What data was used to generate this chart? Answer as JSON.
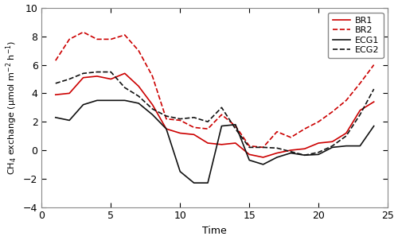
{
  "x": [
    1,
    2,
    3,
    4,
    5,
    6,
    7,
    8,
    9,
    10,
    11,
    12,
    13,
    14,
    15,
    16,
    17,
    18,
    19,
    20,
    21,
    22,
    23,
    24
  ],
  "BR1": [
    3.9,
    4.0,
    5.1,
    5.2,
    5.0,
    5.4,
    4.5,
    3.2,
    1.5,
    1.2,
    1.1,
    0.5,
    0.4,
    0.5,
    -0.3,
    -0.5,
    -0.2,
    0.0,
    0.1,
    0.5,
    0.6,
    1.2,
    2.8,
    3.4
  ],
  "BR2": [
    6.3,
    7.8,
    8.3,
    7.8,
    7.8,
    8.1,
    7.0,
    5.2,
    2.2,
    2.1,
    1.6,
    1.5,
    2.5,
    1.7,
    0.3,
    0.2,
    1.3,
    0.9,
    1.5,
    2.0,
    2.7,
    3.5,
    4.7,
    6.0
  ],
  "ECG1": [
    2.3,
    2.1,
    3.2,
    3.5,
    3.5,
    3.5,
    3.3,
    2.5,
    1.5,
    -1.5,
    -2.3,
    -2.3,
    1.7,
    1.8,
    -0.7,
    -1.0,
    -0.5,
    -0.2,
    -0.35,
    -0.3,
    0.2,
    0.3,
    0.3,
    1.7
  ],
  "ECG2": [
    4.7,
    5.0,
    5.4,
    5.5,
    5.5,
    4.4,
    3.8,
    2.9,
    2.4,
    2.2,
    2.3,
    2.0,
    3.0,
    1.5,
    0.2,
    0.2,
    0.15,
    -0.1,
    -0.35,
    -0.15,
    0.3,
    1.0,
    2.5,
    4.3
  ],
  "xlim": [
    0,
    25
  ],
  "ylim": [
    -4,
    10
  ],
  "xlabel": "Time",
  "ylabel": "CH$_4$ exchange (μmol m$^{-2}$ h$^{-1}$)",
  "xticks": [
    0,
    5,
    10,
    15,
    20,
    25
  ],
  "yticks": [
    -4,
    -2,
    0,
    2,
    4,
    6,
    8,
    10
  ],
  "legend_labels": [
    "BR1",
    "BR2",
    "ECG1",
    "ECG2"
  ],
  "line_colors": [
    "#cc0000",
    "#cc0000",
    "#111111",
    "#111111"
  ],
  "line_styles": [
    "-",
    "--",
    "-",
    "--"
  ],
  "linewidth": 1.2,
  "background_color": "#ffffff"
}
